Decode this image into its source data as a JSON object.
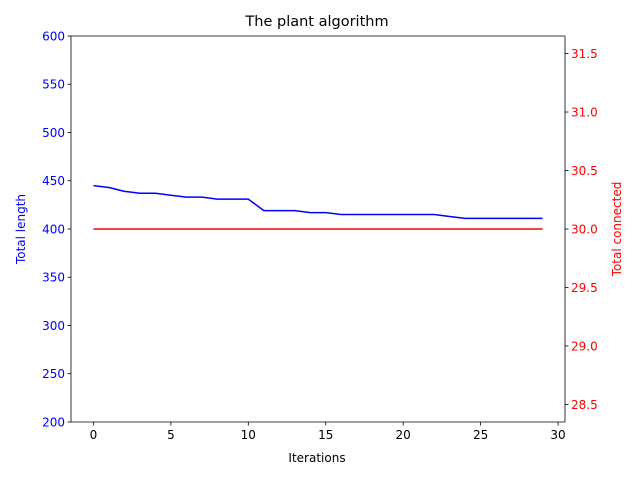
{
  "chart_data": {
    "type": "line",
    "title": "The plant algorithm",
    "xlabel": "Iterations",
    "ylabel_left": "Total length",
    "ylabel_right": "Total connected",
    "xlim": [
      -1.45,
      30.45
    ],
    "ylim_left": [
      200,
      600
    ],
    "ylim_right": [
      28.35,
      31.65
    ],
    "xticks": [
      0,
      5,
      10,
      15,
      20,
      25,
      30
    ],
    "yticks_left": [
      200,
      250,
      300,
      350,
      400,
      450,
      500,
      550,
      600
    ],
    "yticks_right": [
      28.5,
      29.0,
      29.5,
      30.0,
      30.5,
      31.0,
      31.5
    ],
    "grid": false,
    "colors": {
      "left_axis": "#0000ff",
      "right_axis": "#ff0000",
      "frame": "#000000"
    },
    "series": [
      {
        "name": "Total length",
        "axis": "left",
        "color": "#0000ff",
        "x": [
          0,
          1,
          2,
          3,
          4,
          5,
          6,
          7,
          8,
          9,
          10,
          11,
          12,
          13,
          14,
          15,
          16,
          17,
          18,
          19,
          20,
          21,
          22,
          23,
          24,
          25,
          26,
          27,
          28,
          29
        ],
        "values": [
          445,
          443,
          439,
          437,
          437,
          435,
          433,
          433,
          431,
          431,
          431,
          419,
          419,
          419,
          417,
          417,
          415,
          415,
          415,
          415,
          415,
          415,
          415,
          413,
          411,
          411,
          411,
          411,
          411,
          411
        ]
      },
      {
        "name": "Total connected",
        "axis": "right",
        "color": "#ff0000",
        "x": [
          0,
          1,
          2,
          3,
          4,
          5,
          6,
          7,
          8,
          9,
          10,
          11,
          12,
          13,
          14,
          15,
          16,
          17,
          18,
          19,
          20,
          21,
          22,
          23,
          24,
          25,
          26,
          27,
          28,
          29
        ],
        "values": [
          30,
          30,
          30,
          30,
          30,
          30,
          30,
          30,
          30,
          30,
          30,
          30,
          30,
          30,
          30,
          30,
          30,
          30,
          30,
          30,
          30,
          30,
          30,
          30,
          30,
          30,
          30,
          30,
          30,
          30
        ]
      }
    ]
  }
}
